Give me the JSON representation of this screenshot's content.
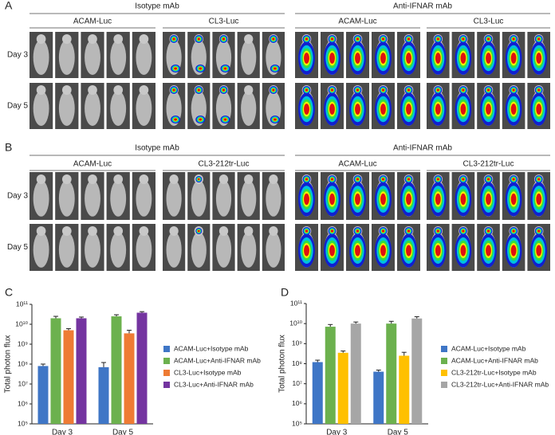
{
  "panels": [
    {
      "label": "A",
      "rows": [
        "Day 3",
        "Day 5"
      ],
      "groups": [
        {
          "title": "Isotype mAb",
          "subgroups": [
            "ACAM-Luc",
            "CL3-Luc"
          ]
        },
        {
          "title": "Anti-IFNAR mAb",
          "subgroups": [
            "ACAM-Luc",
            "CL3-Luc"
          ]
        }
      ]
    },
    {
      "label": "B",
      "rows": [
        "Day 3",
        "Day 5"
      ],
      "groups": [
        {
          "title": "Isotype mAb",
          "subgroups": [
            "ACAM-Luc",
            "CL3-212tr-Luc"
          ]
        },
        {
          "title": "Anti-IFNAR mAb",
          "subgroups": [
            "ACAM-Luc",
            "CL3-212tr-Luc"
          ]
        }
      ]
    }
  ],
  "chart_data": [
    {
      "type": "bar",
      "panel_label": "C",
      "ylabel": "Total photon flux",
      "log_scale": true,
      "legend": "right",
      "categories": [
        "Day 3",
        "Day 5"
      ],
      "series": [
        {
          "name": "ACAM-Luc+Isotype mAb",
          "color": "#3f76c6",
          "values": [
            80000000,
            70000000
          ],
          "errors": [
            20000000,
            50000000
          ]
        },
        {
          "name": "ACAM-Luc+Anti-IFNAR mAb",
          "color": "#6cb14e",
          "values": [
            20000000000,
            25000000000
          ],
          "errors": [
            5000000000,
            5000000000
          ]
        },
        {
          "name": "CL3-Luc+Isotype mAb",
          "color": "#ee7b34",
          "values": [
            5000000000,
            3500000000
          ],
          "errors": [
            1000000000,
            1500000000
          ]
        },
        {
          "name": "CL3-Luc+Anti-IFNAR mAb",
          "color": "#7434a0",
          "values": [
            20000000000,
            38000000000
          ],
          "errors": [
            3000000000,
            5000000000
          ]
        }
      ],
      "ylim": [
        100000,
        100000000000
      ],
      "yticks": [
        {
          "value": 100000,
          "label": "10⁵"
        },
        {
          "value": 1000000,
          "label": "10⁶"
        },
        {
          "value": 10000000,
          "label": "10⁷"
        },
        {
          "value": 100000000,
          "label": "10⁸"
        },
        {
          "value": 1000000000,
          "label": "10⁹"
        },
        {
          "value": 10000000000,
          "label": "10¹⁰"
        },
        {
          "value": 100000000000,
          "label": "10¹¹"
        }
      ]
    },
    {
      "type": "bar",
      "panel_label": "D",
      "ylabel": "Total photon flux",
      "log_scale": true,
      "legend": "right",
      "categories": [
        "Day 3",
        "Day 5"
      ],
      "series": [
        {
          "name": "ACAM-Luc+Isotype mAb",
          "color": "#3f76c6",
          "values": [
            120000000,
            40000000
          ],
          "errors": [
            30000000,
            8000000
          ]
        },
        {
          "name": "ACAM-Luc+Anti-IFNAR mAb",
          "color": "#6cb14e",
          "values": [
            7000000000,
            10000000000
          ],
          "errors": [
            2000000000,
            3000000000
          ]
        },
        {
          "name": "CL3-212tr-Luc+Isotype mAb",
          "color": "#ffc000",
          "values": [
            350000000,
            250000000
          ],
          "errors": [
            80000000,
            120000000
          ]
        },
        {
          "name": "CL3-212tr-Luc+Anti-IFNAR mAb",
          "color": "#a6a6a6",
          "values": [
            10000000000,
            18000000000
          ],
          "errors": [
            2000000000,
            4000000000
          ]
        }
      ],
      "ylim": [
        100000,
        100000000000
      ],
      "yticks": [
        {
          "value": 100000,
          "label": "10⁵"
        },
        {
          "value": 1000000,
          "label": "10⁶"
        },
        {
          "value": 10000000,
          "label": "10⁷"
        },
        {
          "value": 100000000,
          "label": "10⁸"
        },
        {
          "value": 1000000000,
          "label": "10⁹"
        },
        {
          "value": 10000000000,
          "label": "10¹⁰"
        },
        {
          "value": 100000000000,
          "label": "10¹¹"
        }
      ]
    }
  ]
}
